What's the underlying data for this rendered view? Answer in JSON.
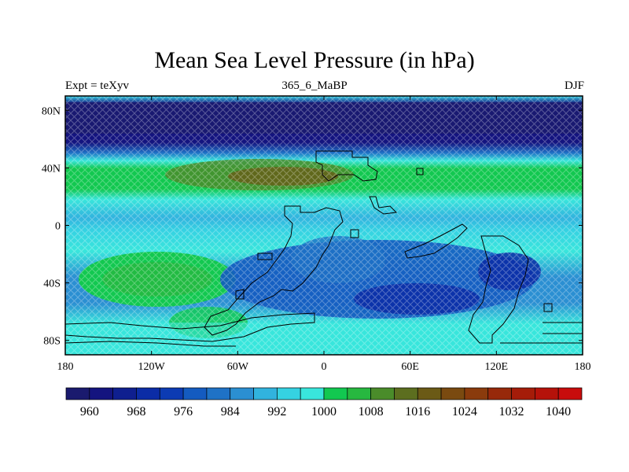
{
  "title": "Mean Sea Level Pressure (in hPa)",
  "subtitle_left": "Expt = teXyv",
  "subtitle_center": "365_6_MaBP",
  "subtitle_right": "DJF",
  "map": {
    "lon_range": [
      -180,
      180
    ],
    "lat_range": [
      -90,
      90
    ],
    "x_tick_labels": [
      "180",
      "120W",
      "60W",
      "0",
      "60E",
      "120E",
      "180"
    ],
    "y_tick_labels": [
      "80N",
      "40N",
      "0",
      "40S",
      "80S"
    ],
    "coastlines": true,
    "hatching": true
  },
  "colorbar": {
    "colors": [
      "#1a1a6e",
      "#14147f",
      "#0f1f8f",
      "#0b2ca6",
      "#0c3bb3",
      "#145bc0",
      "#1f72c6",
      "#2b8fd2",
      "#31b3de",
      "#35d2e2",
      "#39e6dc",
      "#12c850",
      "#27b840",
      "#4a8c2a",
      "#5c6e1f",
      "#6b5a16",
      "#7a4a10",
      "#8a3b0c",
      "#97290a",
      "#a51c09",
      "#b5120a",
      "#c80c0c"
    ],
    "tick_labels": [
      "960",
      "968",
      "976",
      "984",
      "992",
      "1000",
      "1008",
      "1016",
      "1024",
      "1032",
      "1040"
    ],
    "unit": "hPa"
  }
}
